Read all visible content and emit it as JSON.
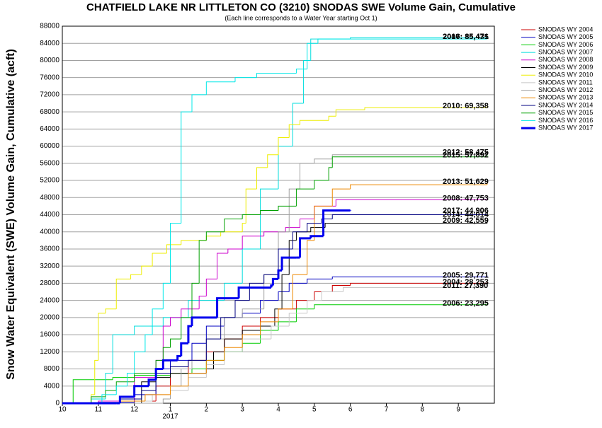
{
  "chart_data": {
    "type": "line",
    "step": true,
    "title": "CHATFIELD LAKE NR LITTLETON CO (3210) SNODAS SWE Volume Gain, Cumulative",
    "subtitle": "(Each line corresponds to a Water Year starting Oct 1)",
    "y_label": "Snow Water Equivalent (SWE) Volume Gain, Cumulative (acft)",
    "xlim": [
      0,
      12
    ],
    "xticks": [
      {
        "value": 0,
        "label": "10"
      },
      {
        "value": 1,
        "label": "11"
      },
      {
        "value": 2,
        "label": "12"
      },
      {
        "value": 3,
        "label": "1"
      },
      {
        "value": 4,
        "label": "2"
      },
      {
        "value": 5,
        "label": "3"
      },
      {
        "value": 6,
        "label": "4"
      },
      {
        "value": 7,
        "label": "5"
      },
      {
        "value": 8,
        "label": "6"
      },
      {
        "value": 9,
        "label": "7"
      },
      {
        "value": 10,
        "label": "8"
      },
      {
        "value": 11,
        "label": "9"
      }
    ],
    "x_sublabels": [
      {
        "value": 3,
        "label": "2017"
      }
    ],
    "ylim": [
      0,
      88000
    ],
    "yticks": [
      0,
      4000,
      8000,
      12000,
      16000,
      20000,
      24000,
      28000,
      32000,
      36000,
      40000,
      44000,
      48000,
      52000,
      56000,
      60000,
      64000,
      68000,
      72000,
      76000,
      80000,
      84000,
      88000
    ],
    "grid": true,
    "series": [
      {
        "name": "SNODAS WY 2004",
        "color": "#cc0000",
        "end_label": "2004: 28,253",
        "x": [
          0,
          2.0,
          2.6,
          3.0,
          3.5,
          4.0,
          4.5,
          5.0,
          5.5,
          6.0,
          6.5,
          7.0,
          7.5,
          8.0,
          11.8
        ],
        "values": [
          0,
          500,
          4000,
          7000,
          10000,
          12000,
          15000,
          18000,
          20000,
          22000,
          24000,
          26000,
          27500,
          28000,
          28253
        ]
      },
      {
        "name": "SNODAS WY 2005",
        "color": "#0000c0",
        "end_label": "2005: 29,771",
        "x": [
          0,
          1.0,
          2.0,
          2.6,
          3.0,
          3.6,
          4.0,
          4.5,
          5.0,
          5.5,
          6.0,
          6.3,
          6.8,
          7.5,
          11.8
        ],
        "values": [
          0,
          200,
          2000,
          8000,
          10000,
          14000,
          18000,
          20000,
          21000,
          24000,
          26000,
          28000,
          29000,
          29500,
          29771
        ]
      },
      {
        "name": "SNODAS WY 2006",
        "color": "#00cc00",
        "end_label": "2006: 23,295",
        "x": [
          0,
          0.3,
          1.4,
          2.0,
          3.0,
          3.6,
          4.0,
          4.5,
          5.0,
          5.5,
          6.0,
          6.5,
          7.0,
          11.8
        ],
        "values": [
          0,
          5500,
          6000,
          6500,
          7000,
          8000,
          10000,
          12000,
          14000,
          17000,
          19000,
          22000,
          23000,
          23295
        ]
      },
      {
        "name": "SNODAS WY 2007",
        "color": "#00dddd",
        "end_label": "2007: 85,435",
        "x": [
          0,
          0.8,
          1.2,
          1.4,
          2.0,
          2.8,
          3.5,
          4.5,
          5.0,
          5.5,
          6.0,
          6.4,
          6.7,
          6.9,
          8.0,
          11.8
        ],
        "values": [
          0,
          1000,
          7000,
          16000,
          18000,
          20000,
          24000,
          28000,
          36000,
          50000,
          60000,
          70000,
          80000,
          85000,
          85300,
          85435
        ]
      },
      {
        "name": "SNODAS WY 2008",
        "color": "#cc00cc",
        "end_label": "2008: 47,753",
        "x": [
          0,
          1.0,
          2.0,
          2.6,
          2.8,
          3.0,
          3.3,
          3.8,
          4.0,
          4.3,
          4.6,
          5.0,
          5.6,
          6.2,
          6.6,
          7.0,
          7.6,
          11.8
        ],
        "values": [
          0,
          500,
          6000,
          10000,
          18000,
          20000,
          22000,
          25000,
          29000,
          35000,
          36000,
          39000,
          40000,
          41000,
          43000,
          46000,
          47500,
          47753
        ]
      },
      {
        "name": "SNODAS WY 2009",
        "color": "#000000",
        "end_label": "2009: 42,559",
        "x": [
          0,
          2.2,
          2.6,
          3.0,
          4.0,
          4.2,
          4.5,
          5.0,
          5.5,
          5.9,
          6.1,
          6.3,
          6.5,
          6.9,
          7.3,
          11.8
        ],
        "values": [
          0,
          5000,
          6000,
          7000,
          8000,
          12000,
          15000,
          17000,
          18000,
          22000,
          30000,
          38000,
          40000,
          41000,
          42000,
          42559
        ]
      },
      {
        "name": "SNODAS WY 2010",
        "color": "#eeee00",
        "end_label": "2010: 69,358",
        "x": [
          0,
          0.8,
          0.9,
          1.0,
          1.2,
          1.5,
          1.9,
          2.2,
          2.5,
          2.9,
          3.3,
          4.0,
          4.4,
          5.0,
          5.1,
          5.4,
          5.7,
          6.0,
          6.3,
          6.6,
          7.4,
          7.6,
          8.4,
          11.8
        ],
        "values": [
          0,
          2000,
          10000,
          21000,
          22000,
          29000,
          30000,
          32000,
          35000,
          37000,
          38000,
          39000,
          40000,
          42000,
          50000,
          55000,
          58000,
          62000,
          65000,
          66000,
          67000,
          68500,
          69000,
          69358
        ]
      },
      {
        "name": "SNODAS WY 2011",
        "color": "#c8c8c8",
        "end_label": "2011: 27,390",
        "x": [
          0,
          1.6,
          2.5,
          3.0,
          3.5,
          4.0,
          4.5,
          5.0,
          5.8,
          6.3,
          6.8,
          7.2,
          7.8,
          11.8
        ],
        "values": [
          0,
          500,
          2000,
          3000,
          6000,
          9000,
          12000,
          15000,
          18000,
          21000,
          24000,
          26000,
          27000,
          27390
        ]
      },
      {
        "name": "SNODAS WY 2012",
        "color": "#a0a0a0",
        "end_label": "2012: 58,475",
        "x": [
          0,
          2.8,
          3.0,
          3.3,
          3.6,
          4.0,
          4.5,
          5.0,
          5.6,
          6.0,
          6.3,
          6.6,
          7.0,
          7.5,
          11.8
        ],
        "values": [
          0,
          1000,
          4000,
          8000,
          10000,
          15000,
          20000,
          22000,
          30000,
          40000,
          50000,
          56000,
          57000,
          58000,
          58475
        ]
      },
      {
        "name": "SNODAS WY 2013",
        "color": "#ee8800",
        "end_label": "2013: 51,629",
        "x": [
          0,
          1.6,
          2.3,
          3.0,
          3.5,
          4.0,
          4.5,
          5.0,
          5.5,
          6.0,
          6.4,
          6.8,
          7.0,
          7.5,
          8.0,
          11.8
        ],
        "values": [
          0,
          500,
          2000,
          4000,
          7000,
          10000,
          13000,
          16000,
          19000,
          22000,
          30000,
          38000,
          46000,
          50000,
          51000,
          51629
        ]
      },
      {
        "name": "SNODAS WY 2014",
        "color": "#000080",
        "end_label": "2014: 44,014",
        "x": [
          0,
          1.6,
          2.2,
          2.6,
          3.0,
          3.5,
          4.0,
          4.4,
          4.8,
          5.2,
          5.6,
          6.0,
          6.4,
          6.8,
          7.2,
          7.5,
          11.8
        ],
        "values": [
          0,
          1000,
          3000,
          7000,
          8500,
          10000,
          15000,
          20000,
          24000,
          28000,
          30000,
          36000,
          40000,
          42000,
          43000,
          44000,
          44014
        ]
      },
      {
        "name": "SNODAS WY 2015",
        "color": "#00a000",
        "end_label": "2015: 57,892",
        "x": [
          0,
          0.8,
          1.2,
          1.5,
          2.0,
          2.6,
          2.8,
          3.0,
          3.3,
          3.6,
          3.8,
          4.0,
          4.5,
          5.0,
          5.5,
          6.0,
          6.5,
          7.0,
          7.4,
          7.5,
          11.8
        ],
        "values": [
          0,
          1500,
          3000,
          5000,
          7000,
          10000,
          13000,
          15000,
          20000,
          28000,
          38000,
          40000,
          43000,
          44000,
          45000,
          46000,
          50000,
          52000,
          55000,
          57500,
          57892
        ]
      },
      {
        "name": "SNODAS WY 2016",
        "color": "#00e8e8",
        "end_label": "2016: 85,471",
        "x": [
          0,
          1.1,
          1.5,
          1.8,
          2.0,
          2.3,
          2.5,
          2.8,
          3.0,
          3.3,
          3.6,
          4.0,
          4.8,
          5.4,
          6.5,
          6.8,
          7.1,
          11.8
        ],
        "values": [
          0,
          2000,
          4000,
          7000,
          12000,
          16000,
          22000,
          28000,
          42000,
          68000,
          72000,
          75000,
          76000,
          77000,
          78000,
          84000,
          85000,
          85471
        ]
      },
      {
        "name": "SNODAS WY 2017",
        "color": "#0000ee",
        "line_width": 3,
        "end_label": "2017: 44,906",
        "x": [
          0,
          1.5,
          1.6,
          2.0,
          2.4,
          2.6,
          2.8,
          3.2,
          3.3,
          3.5,
          3.6,
          4.2,
          4.3,
          4.9,
          5.8,
          5.85,
          6.0,
          6.1,
          6.5,
          6.6,
          6.9,
          7.25,
          8.0
        ],
        "values": [
          0,
          0,
          1500,
          4000,
          5500,
          8000,
          10000,
          11000,
          14000,
          18000,
          20000,
          20000,
          24500,
          27000,
          27500,
          29000,
          31000,
          34000,
          34000,
          38500,
          39000,
          45000,
          44906
        ]
      }
    ]
  }
}
